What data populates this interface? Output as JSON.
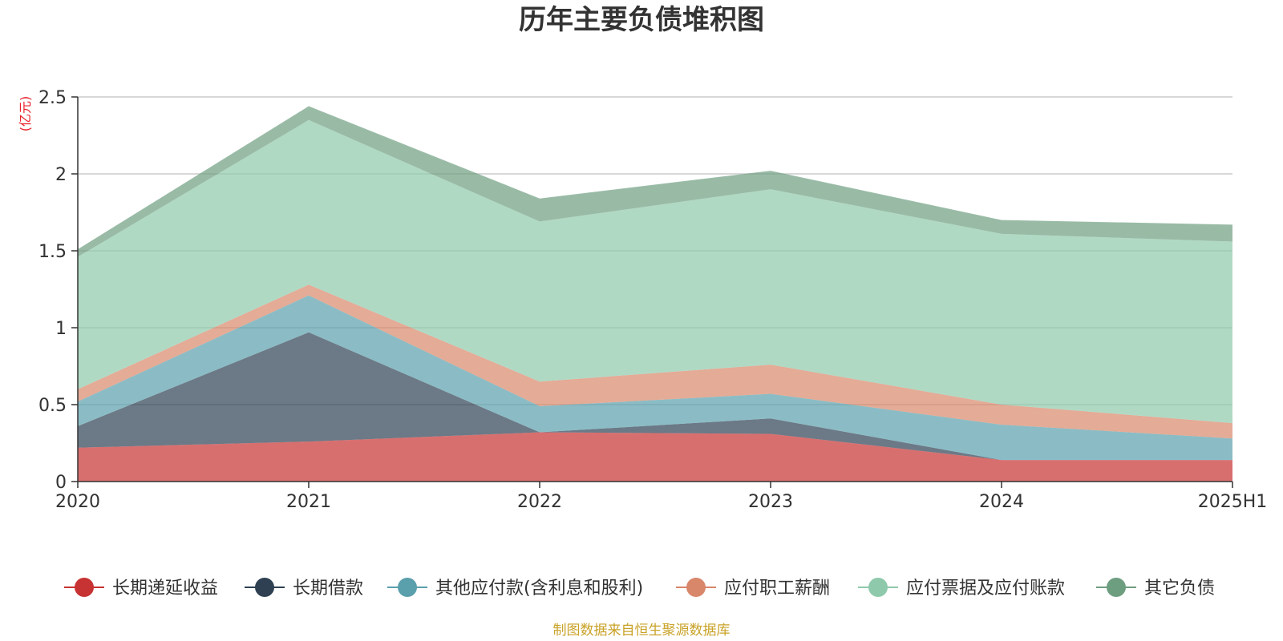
{
  "chart_data": {
    "type": "area",
    "stacked": true,
    "title": "历年主要负债堆积图",
    "unit_label": "(亿元)",
    "categories": [
      "2020",
      "2021",
      "2022",
      "2023",
      "2024",
      "2025H1"
    ],
    "ylim": [
      0,
      2.5
    ],
    "yticks": [
      "0",
      "0.5",
      "1",
      "1.5",
      "2",
      "2.5"
    ],
    "ytick_values": [
      0,
      0.5,
      1,
      1.5,
      2,
      2.5
    ],
    "grid": true,
    "legend_position": "bottom",
    "series": [
      {
        "name": "长期递延收益",
        "color": "#c73232",
        "values": [
          0.22,
          0.26,
          0.32,
          0.31,
          0.14,
          0.14
        ]
      },
      {
        "name": "长期借款",
        "color": "#2e4052",
        "values": [
          0.14,
          0.71,
          0.0,
          0.1,
          0.0,
          0.0
        ]
      },
      {
        "name": "其他应付款(含利息和股利)",
        "color": "#5a9fac",
        "values": [
          0.16,
          0.24,
          0.17,
          0.16,
          0.23,
          0.14
        ]
      },
      {
        "name": "应付职工薪酬",
        "color": "#d9876a",
        "values": [
          0.08,
          0.07,
          0.16,
          0.19,
          0.13,
          0.1
        ]
      },
      {
        "name": "应付票据及应付账款",
        "color": "#8fc9ab",
        "values": [
          0.86,
          1.07,
          1.04,
          1.14,
          1.11,
          1.18
        ]
      },
      {
        "name": "其它负债",
        "color": "#6e9e80",
        "values": [
          0.05,
          0.09,
          0.15,
          0.12,
          0.09,
          0.11
        ]
      }
    ]
  },
  "footer": {
    "source": "制图数据来自恒生聚源数据库"
  }
}
